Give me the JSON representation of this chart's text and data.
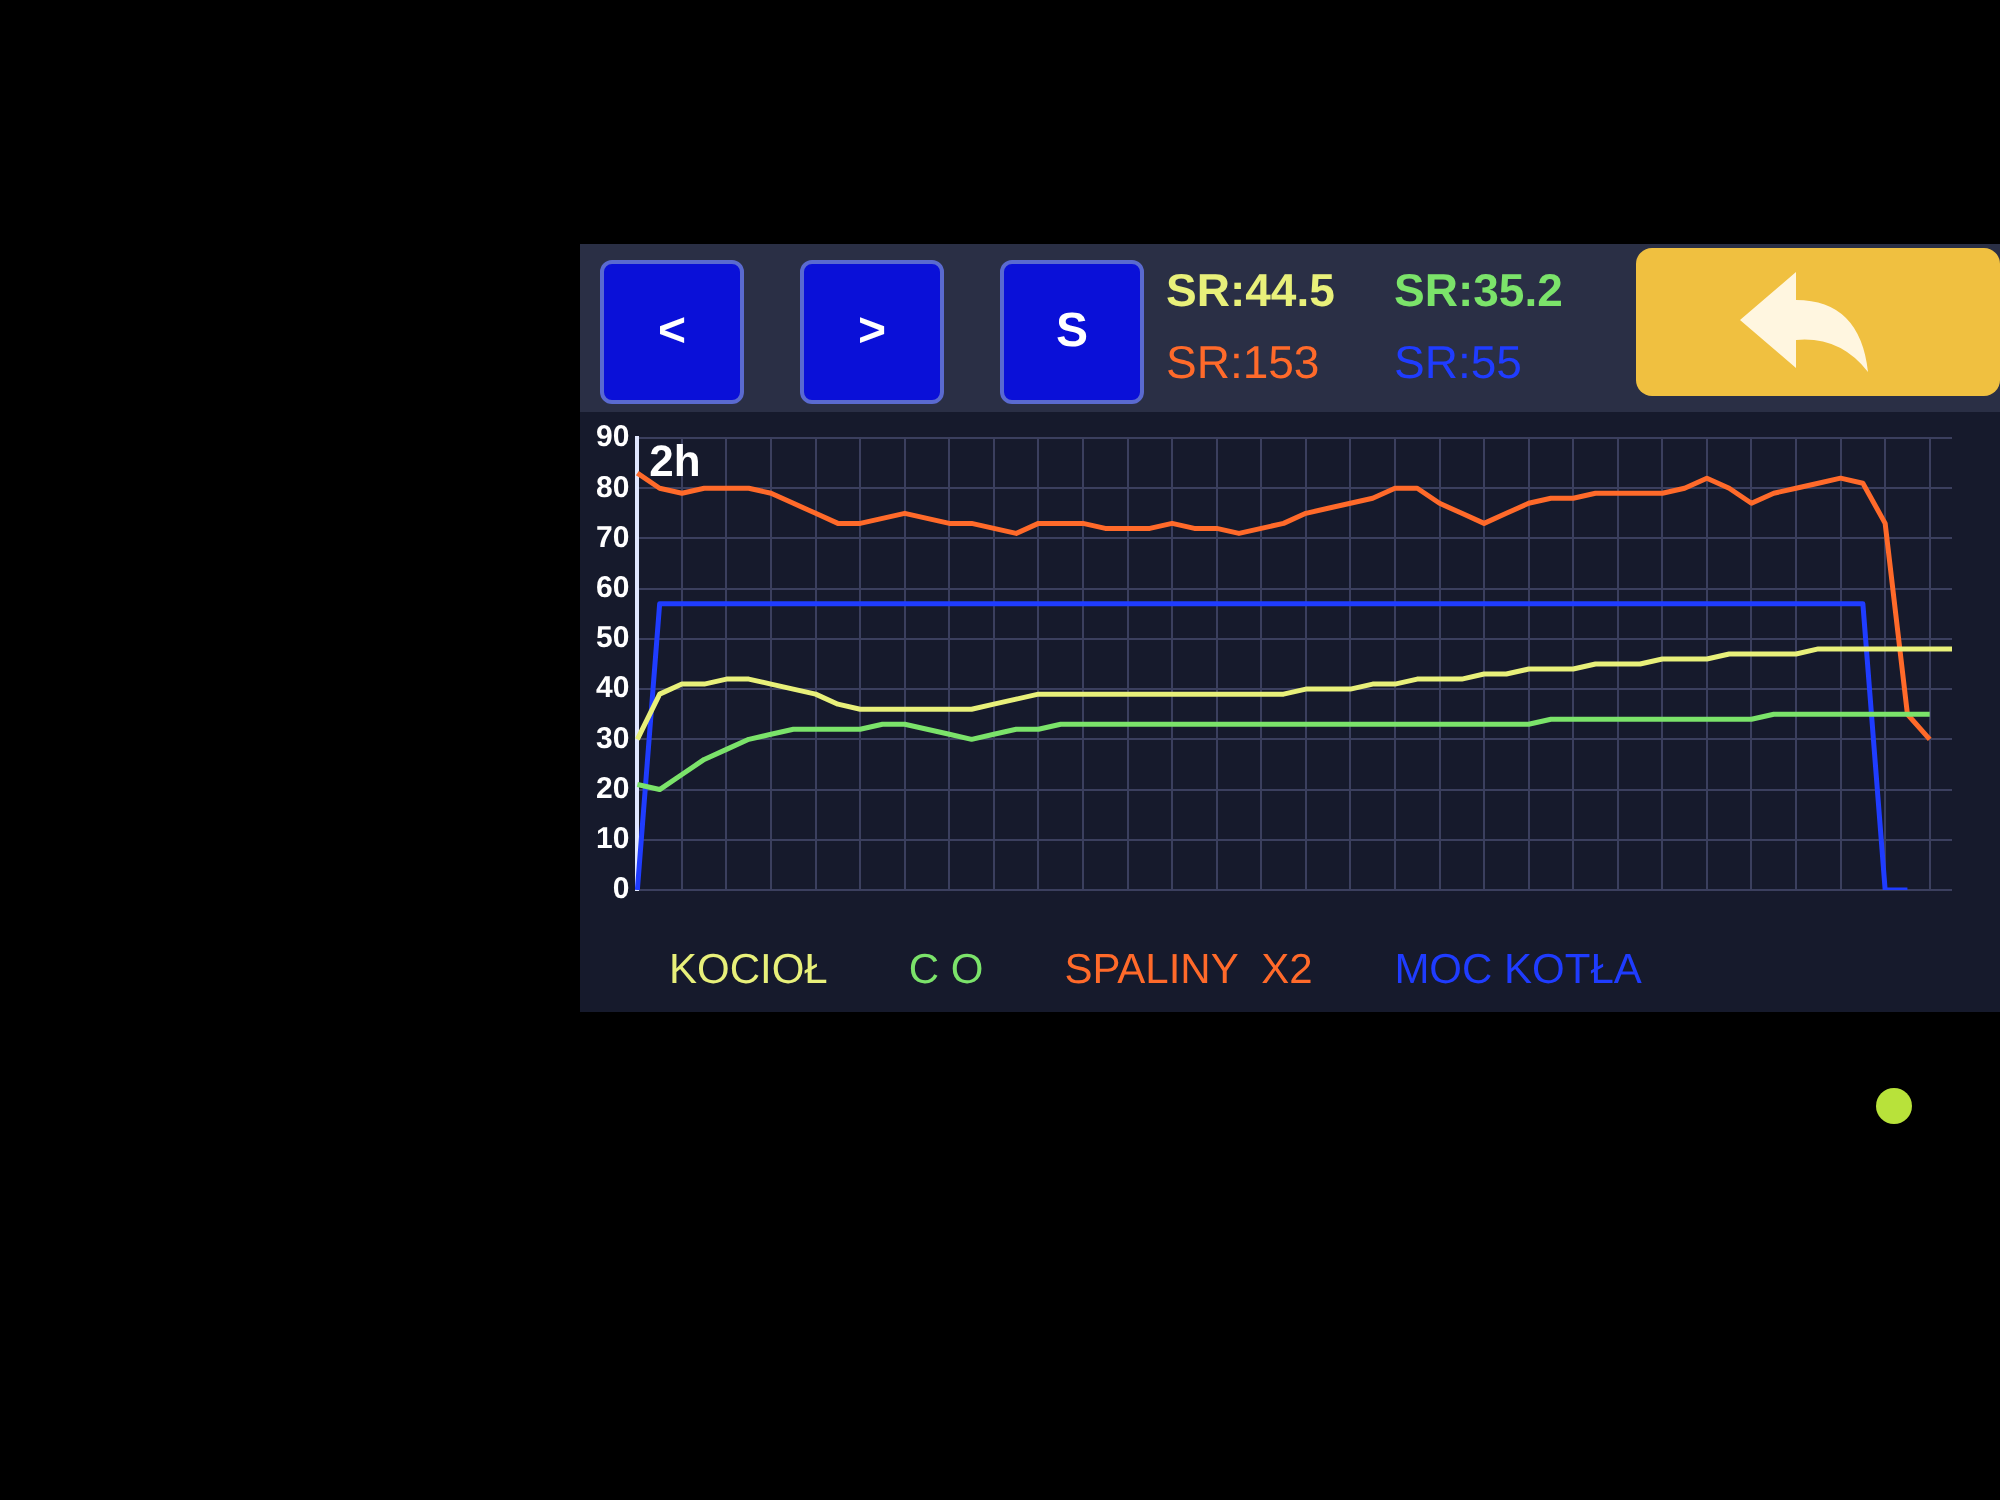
{
  "chart_data": {
    "type": "line",
    "categories": [
      null,
      null,
      null,
      null,
      null,
      null,
      null,
      null,
      null,
      null,
      null,
      null,
      null,
      null,
      null,
      null,
      null,
      null,
      null,
      null,
      null,
      null,
      null,
      null,
      null,
      null,
      null,
      null,
      null,
      null,
      null,
      null,
      null,
      null,
      null,
      null,
      null,
      null,
      null,
      null,
      null,
      null,
      null,
      null,
      null,
      null,
      null,
      null,
      null,
      null,
      null,
      null,
      null,
      null,
      null,
      null,
      null,
      null,
      null,
      null
    ],
    "series": [
      {
        "name": "KOCIOŁ",
        "color": "#e8f07a",
        "values": [
          30,
          39,
          41,
          41,
          42,
          42,
          41,
          40,
          39,
          37,
          36,
          36,
          36,
          36,
          36,
          36,
          37,
          38,
          39,
          39,
          39,
          39,
          39,
          39,
          39,
          39,
          39,
          39,
          39,
          39,
          40,
          40,
          40,
          41,
          41,
          42,
          42,
          42,
          43,
          43,
          44,
          44,
          44,
          45,
          45,
          45,
          46,
          46,
          46,
          47,
          47,
          47,
          47,
          48,
          48,
          48,
          48,
          48,
          48,
          48
        ]
      },
      {
        "name": "C O",
        "color": "#7be36a",
        "values": [
          21,
          20,
          23,
          26,
          28,
          30,
          31,
          32,
          32,
          32,
          32,
          33,
          33,
          32,
          31,
          30,
          31,
          32,
          32,
          33,
          33,
          33,
          33,
          33,
          33,
          33,
          33,
          33,
          33,
          33,
          33,
          33,
          33,
          33,
          33,
          33,
          33,
          33,
          33,
          33,
          33,
          34,
          34,
          34,
          34,
          34,
          34,
          34,
          34,
          34,
          34,
          35,
          35,
          35,
          35,
          35,
          35,
          35,
          35,
          null
        ]
      },
      {
        "name": "SPALINY  X2",
        "color": "#ff6a2a",
        "values": [
          83,
          80,
          79,
          80,
          80,
          80,
          79,
          77,
          75,
          73,
          73,
          74,
          75,
          74,
          73,
          73,
          72,
          71,
          73,
          73,
          73,
          72,
          72,
          72,
          73,
          72,
          72,
          71,
          72,
          73,
          75,
          76,
          77,
          78,
          80,
          80,
          77,
          75,
          73,
          75,
          77,
          78,
          78,
          79,
          79,
          79,
          79,
          80,
          82,
          80,
          77,
          79,
          80,
          81,
          82,
          81,
          73,
          35,
          30,
          null
        ]
      },
      {
        "name": "MOC KOTŁA",
        "color": "#1f3cff",
        "values": [
          0,
          57,
          57,
          57,
          57,
          57,
          57,
          57,
          57,
          57,
          57,
          57,
          57,
          57,
          57,
          57,
          57,
          57,
          57,
          57,
          57,
          57,
          57,
          57,
          57,
          57,
          57,
          57,
          57,
          57,
          57,
          57,
          57,
          57,
          57,
          57,
          57,
          57,
          57,
          57,
          57,
          57,
          57,
          57,
          57,
          57,
          57,
          57,
          57,
          57,
          57,
          57,
          57,
          57,
          57,
          57,
          0,
          0,
          null,
          null
        ]
      }
    ],
    "ylim": [
      0,
      90
    ],
    "yticks": [
      0,
      10,
      20,
      30,
      40,
      50,
      60,
      70,
      80,
      90
    ],
    "grid": true,
    "legend": "bottom",
    "marker": "none",
    "line_style": "solid",
    "annotations": [
      "2h",
      "<",
      ">",
      "S",
      "SR:44.5",
      "SR:35.2",
      "SR:153",
      "SR:55"
    ]
  }
}
